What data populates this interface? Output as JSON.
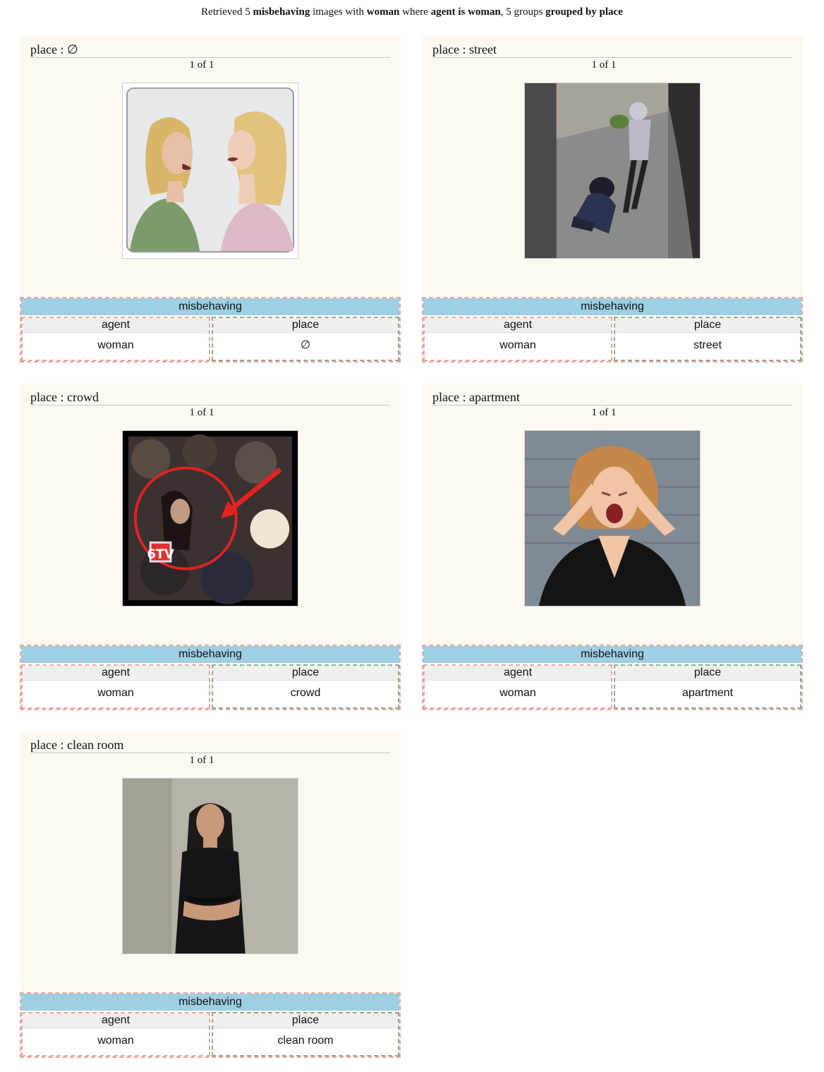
{
  "header": {
    "retrieved": "Retrieved 5",
    "verb": "misbehaving",
    "images_with": "images with",
    "noun": "woman",
    "where": "where",
    "condition": "agent is woman",
    "groups": ", 5 groups",
    "grouped": "grouped by place"
  },
  "groups": [
    {
      "title": "place : ∅",
      "counter": "1 of 1",
      "image_icon": "two-women-arguing-photo",
      "frame": "misbehaving",
      "agent_label": "agent",
      "agent_value": "woman",
      "place_label": "place",
      "place_value": "∅"
    },
    {
      "title": "place : street",
      "counter": "1 of 1",
      "image_icon": "street-fight-photo",
      "frame": "misbehaving",
      "agent_label": "agent",
      "agent_value": "woman",
      "place_label": "place",
      "place_value": "street"
    },
    {
      "title": "place : crowd",
      "counter": "1 of 1",
      "image_icon": "crowd-news-photo",
      "frame": "misbehaving",
      "agent_label": "agent",
      "agent_value": "woman",
      "place_label": "place",
      "place_value": "crowd",
      "logo_text": "6TV"
    },
    {
      "title": "place : apartment",
      "counter": "1 of 1",
      "image_icon": "screaming-woman-photo",
      "frame": "misbehaving",
      "agent_label": "agent",
      "agent_value": "woman",
      "place_label": "place",
      "place_value": "apartment"
    },
    {
      "title": "place : clean room",
      "counter": "1 of 1",
      "image_icon": "woman-arms-crossed-photo",
      "frame": "misbehaving",
      "agent_label": "agent",
      "agent_value": "woman",
      "place_label": "place",
      "place_value": "clean room"
    }
  ],
  "colors": {
    "card_bg": "#fdf8f2",
    "frame_head": "#9ecfe2",
    "agent_border": "#e9a8a0",
    "place_border": "#8fae8a"
  }
}
